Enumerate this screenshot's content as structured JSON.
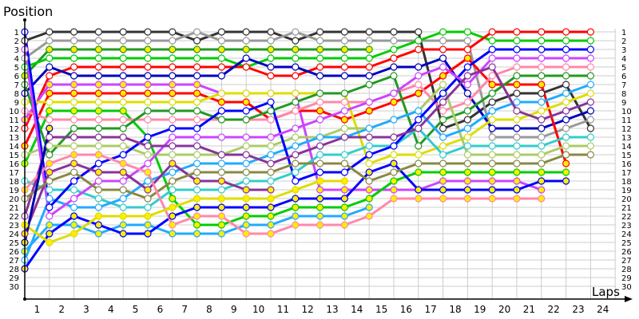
{
  "chart_data": {
    "type": "line",
    "title": "",
    "ylabel": "Position",
    "xlabel": "Laps",
    "x_ticks": [
      1,
      2,
      3,
      4,
      5,
      6,
      7,
      8,
      9,
      10,
      11,
      12,
      13,
      14,
      15,
      16,
      17,
      18,
      19,
      20,
      21,
      22,
      23,
      24
    ],
    "y_ticks": [
      1,
      2,
      3,
      4,
      5,
      6,
      7,
      8,
      9,
      10,
      11,
      12,
      13,
      14,
      15,
      16,
      17,
      18,
      19,
      20,
      21,
      22,
      23,
      24,
      25,
      26,
      27,
      28,
      29,
      30
    ],
    "ylim": [
      1,
      30
    ],
    "xlim": [
      0,
      24
    ],
    "y_inverted": true,
    "grid": true,
    "marker_fill_colors": {
      "open": "#ffffff",
      "filled": "#ffee00"
    },
    "series": [
      {
        "color": "#333333",
        "marker": "open",
        "positions": [
          2,
          1,
          1,
          1,
          1,
          1,
          1,
          2,
          1,
          1,
          1,
          2,
          1,
          1,
          1,
          1,
          1,
          12,
          11,
          9,
          8,
          8,
          7,
          12
        ]
      },
      {
        "color": "#999999",
        "marker": "open",
        "positions": [
          4,
          2,
          2,
          2,
          2,
          2,
          2,
          1,
          2,
          2,
          2,
          1,
          2,
          2,
          2,
          2,
          2,
          2,
          2,
          13,
          13,
          13,
          12,
          11
        ]
      },
      {
        "color": "#229922",
        "marker": "filled",
        "positions": [
          6,
          3,
          3,
          3,
          3,
          3,
          3,
          3,
          3,
          3,
          3,
          3,
          3,
          3,
          3
        ]
      },
      {
        "color": "#00cc00",
        "marker": "open",
        "positions": [
          5,
          4,
          4,
          4,
          4,
          4,
          4,
          4,
          4,
          5,
          4,
          4,
          4,
          4,
          4,
          3,
          2,
          1,
          1,
          2,
          2,
          2,
          2,
          2
        ]
      },
      {
        "color": "#ff0000",
        "marker": "open",
        "positions": [
          12,
          6,
          5,
          5,
          5,
          5,
          5,
          5,
          5,
          5,
          6,
          6,
          5,
          5,
          5,
          4,
          3,
          3,
          3,
          1,
          1,
          1,
          1,
          1
        ]
      },
      {
        "color": "#0000bb",
        "marker": "open",
        "positions": [
          8,
          5,
          6,
          6,
          6,
          6,
          6,
          6,
          6,
          4,
          5,
          5,
          6,
          6,
          6,
          5,
          5,
          4,
          8,
          12,
          12,
          12,
          11,
          10
        ]
      },
      {
        "color": "#cc44ff",
        "marker": "filled",
        "positions": [
          11,
          7,
          7,
          7,
          7,
          7,
          7,
          7,
          8,
          8,
          8,
          8,
          19,
          19,
          19,
          19,
          19,
          18,
          18,
          18,
          18,
          19
        ]
      },
      {
        "color": "#ff0000",
        "marker": "filled",
        "positions": [
          14,
          8,
          8,
          8,
          8,
          8,
          8,
          8,
          9,
          9,
          11,
          10,
          10,
          11,
          10,
          9,
          8,
          6,
          4,
          7,
          7,
          7,
          16
        ]
      },
      {
        "color": "#dddd00",
        "marker": "open",
        "positions": [
          9,
          9,
          9,
          9,
          9,
          9,
          9,
          9,
          8,
          8,
          8,
          8,
          8,
          8,
          16,
          15,
          15,
          14,
          13,
          11,
          11,
          10,
          9,
          8
        ]
      },
      {
        "color": "#00cc00",
        "marker": "filled",
        "positions": [
          16,
          10,
          10,
          10,
          10,
          13,
          20,
          23,
          23,
          22,
          22,
          21,
          21,
          21,
          20,
          18,
          17,
          17,
          17,
          17,
          17,
          17,
          17
        ]
      },
      {
        "color": "#ff88aa",
        "marker": "open",
        "positions": [
          10,
          11,
          11,
          11,
          11,
          11,
          11,
          11,
          11,
          11,
          11,
          10,
          9,
          9,
          9,
          8,
          7,
          10,
          9,
          6,
          5,
          5,
          5,
          5
        ]
      },
      {
        "color": "#229922",
        "marker": "open",
        "positions": [
          7,
          15,
          12,
          12,
          12,
          10,
          10,
          10,
          11,
          11,
          10,
          9,
          8,
          8,
          7,
          6,
          14,
          11,
          10,
          8,
          6,
          6,
          6,
          6
        ]
      },
      {
        "color": "#aacc66",
        "marker": "open",
        "positions": [
          15,
          14,
          14,
          14,
          14,
          15,
          15,
          15,
          15,
          14,
          14,
          13,
          13,
          12,
          12,
          11,
          10,
          7,
          15,
          15,
          15,
          15,
          14,
          14
        ]
      },
      {
        "color": "#33cccc",
        "marker": "open",
        "positions": [
          18,
          19,
          19,
          20,
          21,
          21,
          19,
          19,
          19,
          18,
          18,
          17,
          15,
          15,
          14,
          14,
          12,
          15,
          14,
          14,
          14,
          14,
          13,
          13
        ]
      },
      {
        "color": "#22aaff",
        "marker": "filled",
        "positions": [
          26,
          23,
          23,
          24,
          23,
          23,
          24,
          24,
          24,
          23,
          23,
          22,
          22,
          22,
          21
        ]
      },
      {
        "color": "#22aaff",
        "marker": "open",
        "positions": [
          27,
          20,
          21,
          21,
          20,
          18,
          17,
          16,
          16,
          16,
          15,
          14,
          13,
          13,
          12,
          11,
          10,
          13,
          12,
          10,
          9,
          9,
          8,
          7
        ]
      },
      {
        "color": "#0000ff",
        "marker": "filled",
        "positions": [
          28,
          24,
          22,
          23,
          24,
          24,
          22,
          21,
          21,
          21,
          21,
          20,
          20,
          20,
          17,
          16,
          19,
          19,
          19,
          19,
          19,
          18,
          18
        ]
      },
      {
        "color": "#0000ff",
        "marker": "open",
        "positions": [
          1,
          21,
          18,
          16,
          15,
          13,
          12,
          12,
          10,
          10,
          9,
          18,
          17,
          17,
          15,
          14,
          11,
          8,
          5,
          3,
          3,
          3,
          3,
          3
        ]
      },
      {
        "color": "#cc44ff",
        "marker": "open",
        "positions": [
          3,
          22,
          20,
          18,
          18,
          16,
          13,
          13,
          13,
          13,
          13,
          12,
          11,
          10,
          9,
          8,
          6,
          5,
          7,
          4,
          4,
          4,
          4,
          4
        ]
      },
      {
        "color": "#883399",
        "marker": "open",
        "positions": [
          22,
          13,
          13,
          13,
          13,
          14,
          14,
          14,
          15,
          15,
          16,
          15,
          14,
          13,
          13,
          13,
          12,
          9,
          6,
          5,
          10,
          11,
          10,
          9
        ]
      },
      {
        "color": "#883399",
        "marker": "filled",
        "positions": [
          24,
          17,
          16,
          17,
          17,
          19,
          16,
          18,
          18,
          19,
          19
        ]
      },
      {
        "color": "#888844",
        "marker": "open",
        "positions": [
          20,
          18,
          17,
          19,
          19,
          20,
          18,
          17,
          17,
          17,
          17,
          16,
          16,
          16,
          18,
          17,
          16,
          16,
          16,
          16,
          16,
          16,
          15,
          15
        ]
      },
      {
        "color": "#ff88aa",
        "marker": "filled",
        "positions": [
          19,
          16,
          15,
          15,
          16,
          17,
          23,
          22,
          22,
          24,
          24,
          23,
          23,
          23,
          22,
          20,
          20,
          20,
          20,
          20,
          20,
          20
        ]
      },
      {
        "color": "#dddd00",
        "marker": "filled",
        "positions": [
          23,
          25,
          24,
          22,
          22,
          22,
          21,
          20,
          20,
          20,
          20,
          19,
          18,
          18
        ]
      },
      {
        "color": "#0000aa",
        "marker": "filled",
        "positions": [
          25,
          12
        ]
      }
    ]
  }
}
